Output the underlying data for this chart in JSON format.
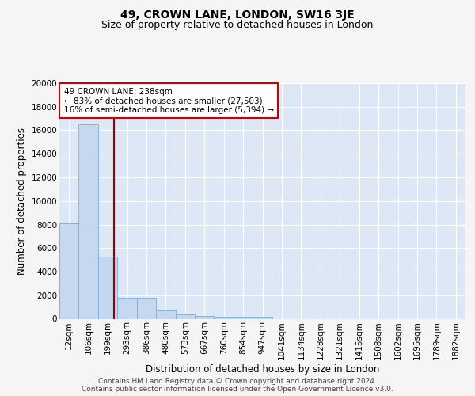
{
  "title": "49, CROWN LANE, LONDON, SW16 3JE",
  "subtitle": "Size of property relative to detached houses in London",
  "xlabel": "Distribution of detached houses by size in London",
  "ylabel": "Number of detached properties",
  "bar_labels": [
    "12sqm",
    "106sqm",
    "199sqm",
    "293sqm",
    "386sqm",
    "480sqm",
    "573sqm",
    "667sqm",
    "760sqm",
    "854sqm",
    "947sqm",
    "1041sqm",
    "1134sqm",
    "1228sqm",
    "1321sqm",
    "1415sqm",
    "1508sqm",
    "1602sqm",
    "1695sqm",
    "1789sqm",
    "1882sqm"
  ],
  "bar_values": [
    8100,
    16500,
    5300,
    1800,
    1800,
    700,
    350,
    250,
    200,
    180,
    150,
    0,
    0,
    0,
    0,
    0,
    0,
    0,
    0,
    0,
    0
  ],
  "bar_color": "#c5d8ef",
  "bar_edge_color": "#7bafd4",
  "bg_color": "#dce8f5",
  "grid_color": "#ffffff",
  "vline_x": 2.33,
  "vline_color": "#990000",
  "ylim": [
    0,
    20000
  ],
  "yticks": [
    0,
    2000,
    4000,
    6000,
    8000,
    10000,
    12000,
    14000,
    16000,
    18000,
    20000
  ],
  "annotation_text": "49 CROWN LANE: 238sqm\n← 83% of detached houses are smaller (27,503)\n16% of semi-detached houses are larger (5,394) →",
  "annotation_box_color": "#ffffff",
  "annotation_border_color": "#cc0000",
  "footer_text": "Contains HM Land Registry data © Crown copyright and database right 2024.\nContains public sector information licensed under the Open Government Licence v3.0.",
  "fig_bg_color": "#f5f5f5",
  "title_fontsize": 10,
  "subtitle_fontsize": 9,
  "axis_label_fontsize": 8.5,
  "tick_fontsize": 7.5,
  "footer_fontsize": 6.5
}
